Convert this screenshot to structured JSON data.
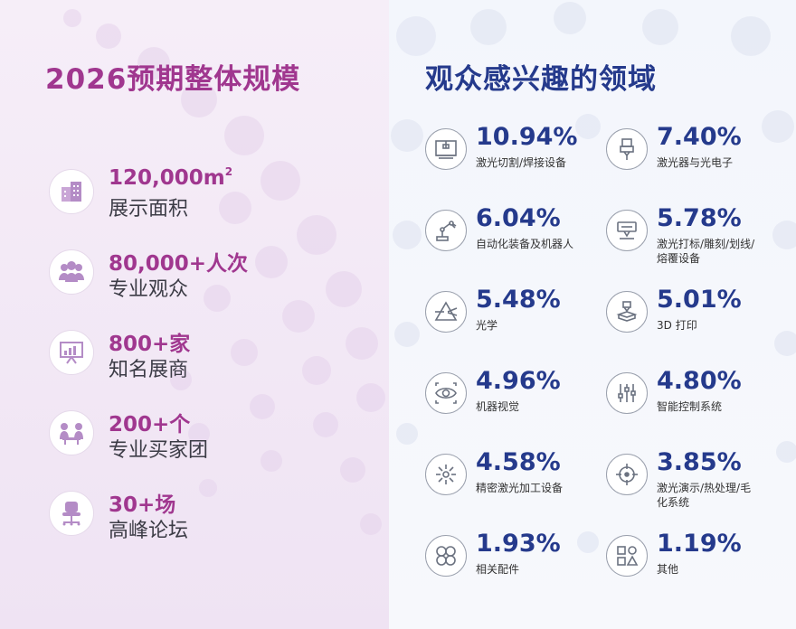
{
  "left": {
    "title": "2026预期整体规模",
    "items": [
      {
        "value": "120,000m",
        "sup": "2",
        "label": "展示面积",
        "icon": "building-icon"
      },
      {
        "value": "80,000+人次",
        "label": "专业观众",
        "icon": "people-group-icon"
      },
      {
        "value": "800+家",
        "label": "知名展商",
        "icon": "presentation-board-icon"
      },
      {
        "value": "200+个",
        "label": "专业买家团",
        "icon": "meeting-icon"
      },
      {
        "value": "30+场",
        "label": "高峰论坛",
        "icon": "office-chair-icon"
      }
    ]
  },
  "right": {
    "title": "观众感兴趣的领域",
    "fields": [
      {
        "pct": "10.94%",
        "label": "激光切割/焊接设备",
        "icon": "laser-cutting-machine-icon"
      },
      {
        "pct": "7.40%",
        "label": "激光器与光电子",
        "icon": "laser-emitter-icon"
      },
      {
        "pct": "6.04%",
        "label": "自动化装备及机器人",
        "icon": "robot-arm-icon"
      },
      {
        "pct": "5.78%",
        "label": "激光打标/雕刻/划线/熔覆设备",
        "icon": "marking-machine-icon"
      },
      {
        "pct": "5.48%",
        "label": "光学",
        "icon": "prism-icon"
      },
      {
        "pct": "5.01%",
        "label": "3D 打印",
        "icon": "3d-printer-icon"
      },
      {
        "pct": "4.96%",
        "label": "机器视觉",
        "icon": "eye-scan-icon"
      },
      {
        "pct": "4.80%",
        "label": "智能控制系统",
        "icon": "control-sliders-icon"
      },
      {
        "pct": "4.58%",
        "label": "精密激光加工设备",
        "icon": "laser-spark-icon"
      },
      {
        "pct": "3.85%",
        "label": "激光演示/热处理/毛化系统",
        "icon": "crosshair-icon"
      },
      {
        "pct": "1.93%",
        "label": "相关配件",
        "icon": "clover-parts-icon"
      },
      {
        "pct": "1.19%",
        "label": "其他",
        "icon": "shapes-grid-icon"
      }
    ]
  },
  "colors": {
    "left_accent": "#a0378f",
    "right_accent": "#253a8c",
    "left_bg": "#f3e9f6",
    "right_bg": "#f4f6fb"
  }
}
